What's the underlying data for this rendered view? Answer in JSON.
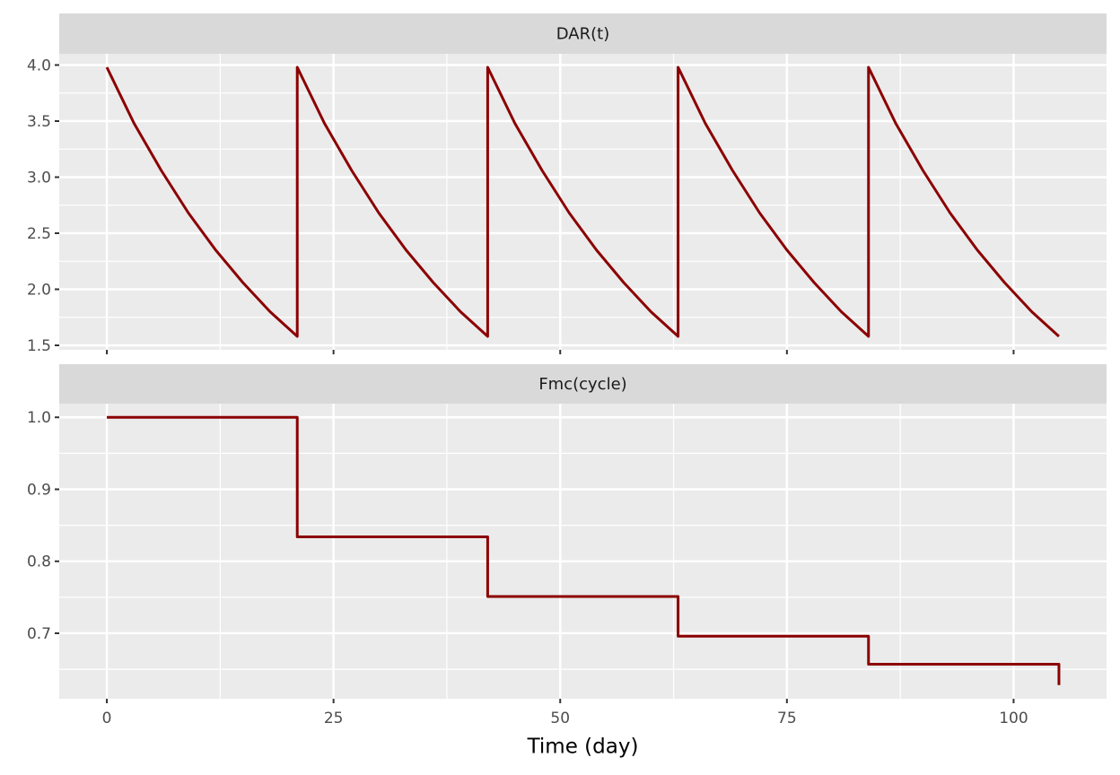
{
  "chart_data": [
    {
      "type": "line",
      "title": "DAR(t)",
      "color": "#8b0000",
      "x": [
        0,
        3,
        6,
        9,
        12,
        15,
        18,
        21,
        21,
        24,
        27,
        30,
        33,
        36,
        39,
        42,
        42,
        45,
        48,
        51,
        54,
        57,
        60,
        63,
        63,
        66,
        69,
        72,
        75,
        78,
        81,
        84,
        84,
        87,
        90,
        93,
        96,
        99,
        102,
        105
      ],
      "values": [
        3.98,
        3.48,
        3.06,
        2.68,
        2.35,
        2.06,
        1.8,
        1.58,
        3.98,
        3.48,
        3.06,
        2.68,
        2.35,
        2.06,
        1.8,
        1.58,
        3.98,
        3.48,
        3.06,
        2.68,
        2.35,
        2.06,
        1.8,
        1.58,
        3.98,
        3.48,
        3.06,
        2.68,
        2.35,
        2.06,
        1.8,
        1.58,
        3.98,
        3.48,
        3.06,
        2.68,
        2.35,
        2.06,
        1.8,
        1.58
      ],
      "xlim": [
        -5.25,
        110.25
      ],
      "xticks": [
        0,
        25,
        50,
        75,
        100
      ],
      "xminor": [
        12.5,
        37.5,
        62.5,
        87.5
      ],
      "ylim": [
        1.46,
        4.1
      ],
      "yticks": [
        {
          "value": 1.5,
          "label": "1.5"
        },
        {
          "value": 2,
          "label": "2.0"
        },
        2.5,
        {
          "value": 3,
          "label": "3.0"
        },
        3.5,
        {
          "value": 4,
          "label": "4.0"
        }
      ],
      "yminor": [
        1.75,
        2.25,
        2.75,
        3.25,
        3.75
      ],
      "grid": true
    },
    {
      "type": "line",
      "title": "Fmc(cycle)",
      "color": "#8b0000",
      "xlabel": "Time (day)",
      "x": [
        0,
        21,
        21,
        42,
        42,
        63,
        63,
        84,
        84,
        105,
        105
      ],
      "values": [
        1.0,
        1.0,
        0.834,
        0.834,
        0.751,
        0.751,
        0.696,
        0.696,
        0.657,
        0.657,
        0.628
      ],
      "xlim": [
        -5.25,
        110.25
      ],
      "xticks": [
        0,
        25,
        50,
        75,
        100
      ],
      "xminor": [
        12.5,
        37.5,
        62.5,
        87.5
      ],
      "ylim": [
        0.609,
        1.019
      ],
      "yticks": [
        0.7,
        0.8,
        0.9,
        {
          "value": 1,
          "label": "1.0"
        }
      ],
      "yminor": [
        0.65,
        0.75,
        0.85,
        0.95
      ],
      "grid": true
    }
  ]
}
